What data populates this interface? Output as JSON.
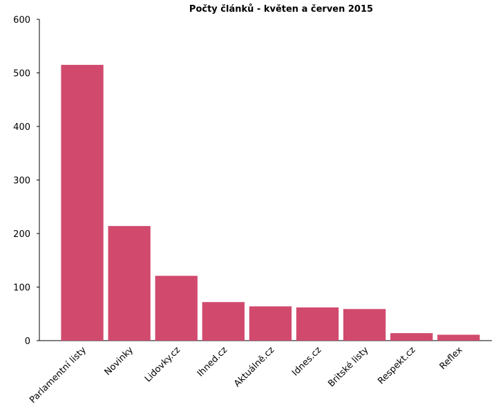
{
  "chart_data": {
    "type": "bar",
    "title": "Počty článků - květen a červen 2015",
    "categories": [
      "Parlamentní listy",
      "Novinky",
      "Lidovky.cz",
      "Ihned.cz",
      "Aktuálně.cz",
      "Idnes.cz",
      "Britské listy",
      "Respekt.cz",
      "Reflex"
    ],
    "values": [
      515,
      214,
      121,
      72,
      64,
      62,
      59,
      14,
      11
    ],
    "color": "#d14a6e",
    "ylim": [
      0,
      600
    ],
    "yticks": [
      0,
      100,
      200,
      300,
      400,
      500,
      600
    ],
    "grid": false
  }
}
